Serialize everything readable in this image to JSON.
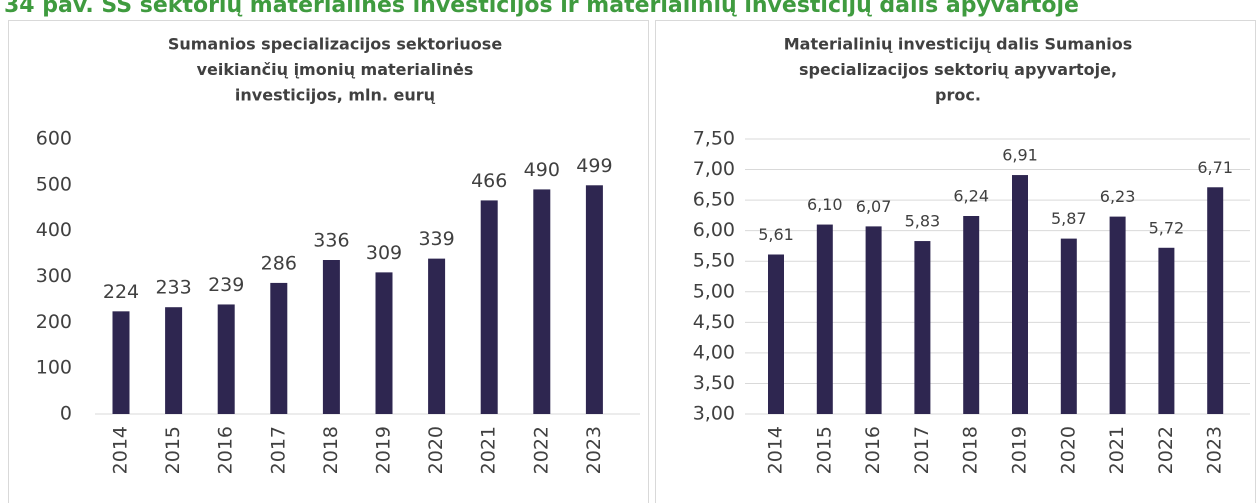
{
  "figure_title": "34 pav. SS sektorių materialinės investicijos ir materialinių investicijų dalis apyvartoje",
  "chart_data": [
    {
      "type": "bar",
      "title": [
        "Sumanios specializacijos sektoriuose",
        "veikiančių įmonių materialinės",
        "investicijos, mln. eurų"
      ],
      "categories": [
        "2014",
        "2015",
        "2016",
        "2017",
        "2018",
        "2019",
        "2020",
        "2021",
        "2022",
        "2023"
      ],
      "values": [
        224,
        233,
        239,
        286,
        336,
        309,
        339,
        466,
        490,
        499
      ],
      "color": "#2e2650",
      "ylim": [
        0,
        600
      ],
      "yticks": [
        0,
        100,
        200,
        300,
        400,
        500,
        600
      ],
      "grid": false
    },
    {
      "type": "bar",
      "title": [
        "Materialinių investicijų dalis Sumanios",
        "specializacijos sektorių apyvartoje,",
        "proc."
      ],
      "categories": [
        "2014",
        "2015",
        "2016",
        "2017",
        "2018",
        "2019",
        "2020",
        "2021",
        "2022",
        "2023"
      ],
      "values": [
        5.61,
        6.1,
        6.07,
        5.83,
        6.24,
        6.91,
        5.87,
        6.23,
        5.72,
        6.71
      ],
      "value_labels": [
        "5,61",
        "6,10",
        "6,07",
        "5,83",
        "6,24",
        "6,91",
        "5,87",
        "6,23",
        "5,72",
        "6,71"
      ],
      "color": "#2e2650",
      "ylim": [
        3,
        7.5
      ],
      "yticks": [
        {
          "value": 3,
          "label": "3,00"
        },
        {
          "value": 3.5,
          "label": "3,50"
        },
        {
          "value": 4,
          "label": "4,00"
        },
        {
          "value": 4.5,
          "label": "4,50"
        },
        {
          "value": 5,
          "label": "5,00"
        },
        {
          "value": 5.5,
          "label": "5,50"
        },
        {
          "value": 6,
          "label": "6,00"
        },
        {
          "value": 6.5,
          "label": "6,50"
        },
        {
          "value": 7,
          "label": "7,00"
        },
        {
          "value": 7.5,
          "label": "7,50"
        }
      ],
      "grid": true
    }
  ]
}
